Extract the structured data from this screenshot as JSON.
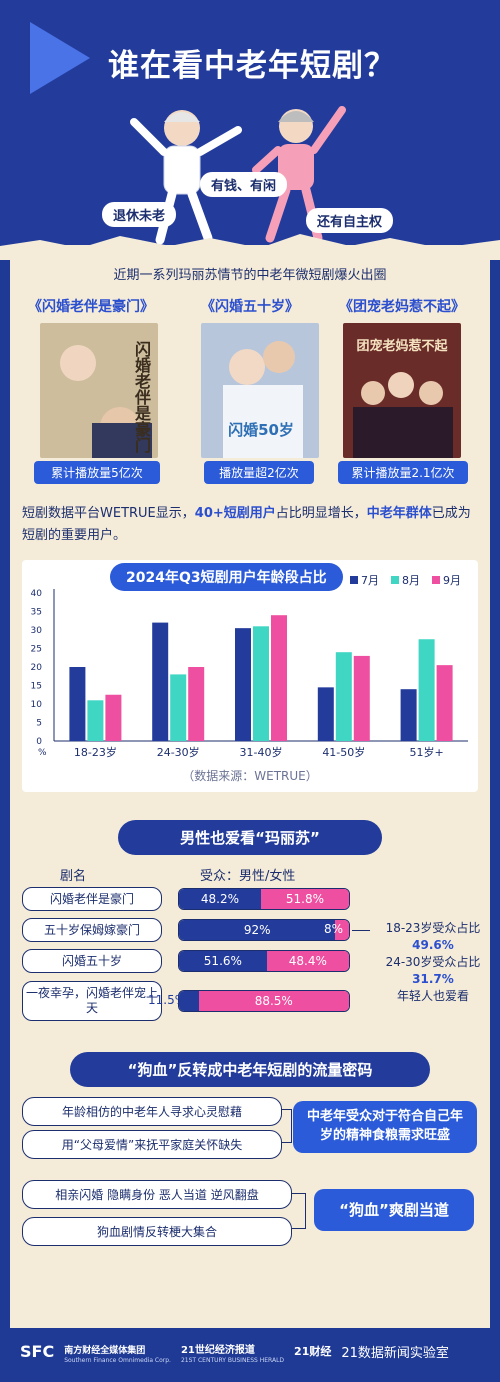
{
  "header": {
    "title": "谁在看中老年短剧？",
    "tags": [
      "有钱、有闲",
      "退休未老",
      "还有自主权"
    ]
  },
  "intro": {
    "subtitle": "近期一系列玛丽苏情节的中老年微短剧爆火出圈",
    "dramas": [
      {
        "title": "《闪婚老伴是豪门》",
        "stat": "累计播放量5亿次",
        "poster_text": "闪婚老伴是豪门",
        "poster_color": "#c9b89a"
      },
      {
        "title": "《闪婚五十岁》",
        "stat": "播放量超2亿次",
        "poster_text": "闪婚50岁",
        "poster_color": "#b7c4d8"
      },
      {
        "title": "《团宠老妈惹不起》",
        "stat": "累计播放量2.1亿次",
        "poster_text": "团宠老妈惹不起",
        "poster_color": "#6d2e2a"
      }
    ],
    "para_pre": "短剧数据平台WETRUE显示，",
    "para_b1": "40+短剧用户",
    "para_mid": "占比明显增长，",
    "para_b2": "中老年群体",
    "para_post": "已成为短剧的重要用户。"
  },
  "chart_data": {
    "type": "bar",
    "title": "2024年Q3短剧用户年龄段占比",
    "categories": [
      "18-23岁",
      "24-30岁",
      "31-40岁",
      "41-50岁",
      "51岁+"
    ],
    "series": [
      {
        "name": "7月",
        "values": [
          20,
          32,
          30.5,
          14.5,
          14
        ],
        "color": "#233c9c"
      },
      {
        "name": "8月",
        "values": [
          11,
          18,
          31,
          24,
          27.5
        ],
        "color": "#3fd6c4"
      },
      {
        "name": "9月",
        "values": [
          12.5,
          20,
          34,
          23,
          20.5
        ],
        "color": "#ee4fa0"
      }
    ],
    "ylim": [
      0,
      40
    ],
    "yticks": [
      "0",
      "5",
      "10",
      "15",
      "20",
      "25",
      "30",
      "35",
      "40"
    ],
    "yunit": "%",
    "source": "（数据来源：WETRUE）"
  },
  "gender": {
    "banner": "男性也爱看“玛丽苏”",
    "col_name": "剧名",
    "col_ratio": "受众：男性/女性",
    "rows": [
      {
        "name": "闪婚老伴是豪门",
        "male": 48.2,
        "female": 51.8,
        "male_label": "48.2%",
        "female_label": "51.8%"
      },
      {
        "name": "五十岁保姆嫁豪门",
        "male": 92,
        "female": 8,
        "male_label": "92%",
        "female_label": "8%"
      },
      {
        "name": "闪婚五十岁",
        "male": 51.6,
        "female": 48.4,
        "male_label": "51.6%",
        "female_label": "48.4%"
      },
      {
        "name": "一夜幸孕，闪婚老伴宠上天",
        "male": 11.5,
        "female": 88.5,
        "male_label": "11.5%",
        "female_label": "88.5%"
      }
    ],
    "note_l1": "18-23岁受众占比",
    "note_v1": "49.6%",
    "note_l2": "24-30岁受众占比",
    "note_v2": "31.7%",
    "note_l3": "年轻人也爱看",
    "male_color": "#233c9c",
    "female_color": "#ee4fa0"
  },
  "reasons": {
    "banner": "“狗血”反转成中老年短剧的流量密码",
    "group1": [
      "年龄相仿的中老年人寻求心灵慰藉",
      "用“父母爱情”来抚平家庭关怀缺失"
    ],
    "concl1": "中老年受众对于符合自己年岁的精神食粮需求旺盛",
    "group2": [
      "相亲闪婚 隐瞒身份 恶人当道 逆风翻盘",
      "狗血剧情反转梗大集合"
    ],
    "concl2": "“狗血”爽剧当道"
  },
  "footer": {
    "logo1": "SFC",
    "logo1_sub": "南方财经全媒体集团",
    "logo1_en": "Southern Finance Omnimedia Corp.",
    "logo2": "21世纪经济报道",
    "logo2_en": "21ST CENTURY BUSINESS HERALD",
    "logo3": "21财经",
    "logo4": "21数据新闻实验室"
  }
}
